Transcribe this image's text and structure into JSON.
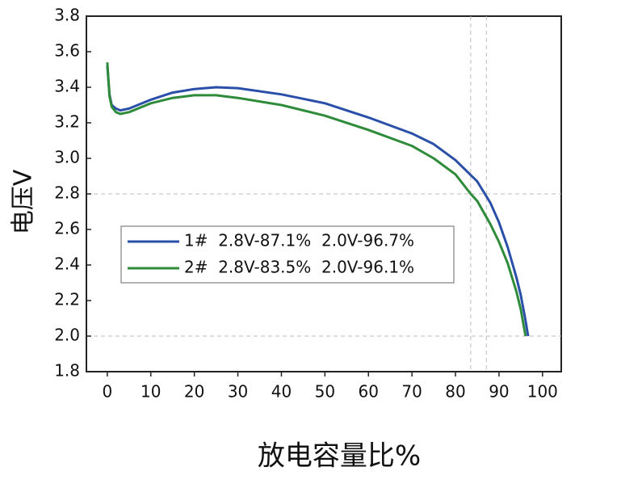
{
  "chart_data": {
    "type": "line",
    "x_label": "放电容量比%",
    "y_label": "电压V",
    "xlim": [
      -4.8,
      104.3
    ],
    "ylim": [
      1.8,
      3.8
    ],
    "xticks": [
      0,
      10,
      20,
      30,
      40,
      50,
      60,
      70,
      80,
      90,
      100
    ],
    "yticks": [
      3.8,
      3.6,
      3.4,
      3.2,
      {
        "value": 3,
        "label": "3.0"
      },
      2.8,
      2.6,
      2.4,
      2.2,
      {
        "value": 2,
        "label": "2.0"
      },
      1.8
    ],
    "reference_lines": {
      "x": [
        83.5,
        87.1
      ],
      "y": [
        2.8,
        2.0
      ]
    },
    "series": [
      {
        "name": "1#  2.8V-87.1%  2.0V-96.7%",
        "color": "#2a4fa8",
        "x": [
          0,
          0.5,
          1,
          2,
          3,
          5,
          10,
          15,
          20,
          25,
          30,
          40,
          50,
          60,
          70,
          75,
          80,
          85,
          88,
          90,
          92,
          94,
          95,
          96,
          96.7
        ],
        "values": [
          3.52,
          3.36,
          3.3,
          3.28,
          3.27,
          3.28,
          3.33,
          3.37,
          3.39,
          3.4,
          3.395,
          3.36,
          3.31,
          3.23,
          3.14,
          3.08,
          2.99,
          2.87,
          2.75,
          2.64,
          2.5,
          2.33,
          2.23,
          2.1,
          2.0
        ]
      },
      {
        "name": "2#  2.8V-83.5%  2.0V-96.1%",
        "color": "#2e8b3a",
        "x": [
          0,
          0.5,
          1,
          2,
          3,
          5,
          10,
          15,
          20,
          25,
          30,
          40,
          50,
          60,
          70,
          75,
          80,
          83.5,
          85,
          88,
          90,
          92,
          94,
          95,
          96.1
        ],
        "values": [
          3.54,
          3.35,
          3.29,
          3.26,
          3.25,
          3.26,
          3.31,
          3.34,
          3.355,
          3.355,
          3.34,
          3.3,
          3.24,
          3.16,
          3.07,
          3.0,
          2.91,
          2.8,
          2.76,
          2.63,
          2.53,
          2.41,
          2.25,
          2.15,
          2.0
        ]
      }
    ],
    "legend": "lower-left"
  }
}
